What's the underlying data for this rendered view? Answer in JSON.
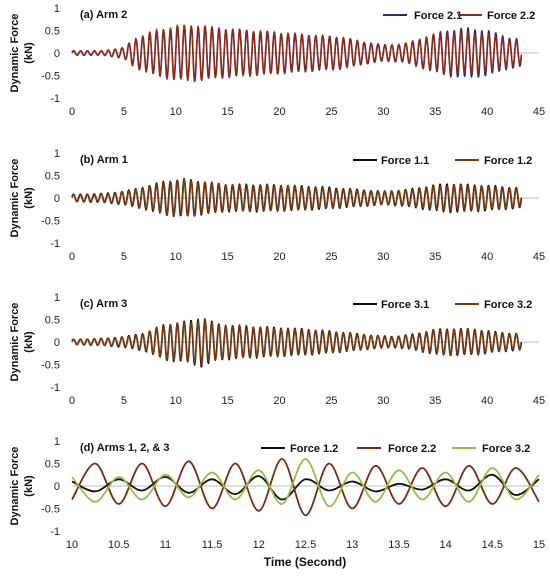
{
  "figure": {
    "x_axis_label": "Time  (Second)"
  },
  "chart_data": [
    {
      "type": "line",
      "title": "(a) Arm 2",
      "ylabel": "Dynamic Force (kN)",
      "xlabel": "",
      "xlim": [
        0,
        45
      ],
      "ylim": [
        -1,
        1
      ],
      "x_ticks": [
        "0",
        "5",
        "10",
        "15",
        "20",
        "25",
        "30",
        "35",
        "40",
        "45"
      ],
      "y_ticks": [
        "1",
        "0.5",
        "0",
        "-0.5",
        "-1"
      ],
      "legend_position": "top-right",
      "series": [
        {
          "name": "Force 2.1",
          "color": "#2e2a7a",
          "t_end": 43.3,
          "envelope": [
            [
              0,
              0.05
            ],
            [
              3,
              0.05
            ],
            [
              5,
              0.12
            ],
            [
              6,
              0.3
            ],
            [
              8,
              0.45
            ],
            [
              10,
              0.58
            ],
            [
              12,
              0.6
            ],
            [
              14,
              0.55
            ],
            [
              17,
              0.5
            ],
            [
              20,
              0.45
            ],
            [
              23,
              0.4
            ],
            [
              26,
              0.35
            ],
            [
              28,
              0.25
            ],
            [
              30,
              0.18
            ],
            [
              32,
              0.2
            ],
            [
              34,
              0.35
            ],
            [
              36,
              0.5
            ],
            [
              38,
              0.55
            ],
            [
              40,
              0.5
            ],
            [
              42,
              0.35
            ],
            [
              43.3,
              0.3
            ]
          ],
          "freq_hz": 1.5,
          "phase": 0.0
        },
        {
          "name": "Force 2.2",
          "color": "#8b2a17",
          "t_end": 43.3,
          "envelope": [
            [
              0,
              0.05
            ],
            [
              3,
              0.05
            ],
            [
              5,
              0.12
            ],
            [
              6,
              0.32
            ],
            [
              8,
              0.5
            ],
            [
              10,
              0.6
            ],
            [
              12,
              0.62
            ],
            [
              14,
              0.55
            ],
            [
              17,
              0.5
            ],
            [
              20,
              0.45
            ],
            [
              23,
              0.4
            ],
            [
              26,
              0.35
            ],
            [
              28,
              0.25
            ],
            [
              30,
              0.18
            ],
            [
              32,
              0.2
            ],
            [
              34,
              0.35
            ],
            [
              36,
              0.45
            ],
            [
              38,
              0.45
            ],
            [
              40,
              0.42
            ],
            [
              42,
              0.3
            ],
            [
              43.3,
              0.25
            ]
          ],
          "freq_hz": 1.5,
          "phase": 0.15
        }
      ]
    },
    {
      "type": "line",
      "title": "(b) Arm 1",
      "ylabel": "Dynamic Force (kN)",
      "xlabel": "",
      "xlim": [
        0,
        45
      ],
      "ylim": [
        -1,
        1
      ],
      "x_ticks": [
        "0",
        "5",
        "10",
        "15",
        "20",
        "25",
        "30",
        "35",
        "40",
        "45"
      ],
      "y_ticks": [
        "1",
        "0.5",
        "0",
        "-0.5",
        "-1"
      ],
      "legend_position": "top-right",
      "series": [
        {
          "name": "Force 1.1",
          "color": "#111111",
          "t_end": 43.3,
          "envelope": [
            [
              0,
              0.08
            ],
            [
              3,
              0.1
            ],
            [
              5,
              0.15
            ],
            [
              7,
              0.25
            ],
            [
              9,
              0.38
            ],
            [
              11,
              0.42
            ],
            [
              13,
              0.35
            ],
            [
              15,
              0.3
            ],
            [
              18,
              0.3
            ],
            [
              21,
              0.28
            ],
            [
              24,
              0.25
            ],
            [
              27,
              0.2
            ],
            [
              30,
              0.15
            ],
            [
              32,
              0.18
            ],
            [
              34,
              0.25
            ],
            [
              36,
              0.32
            ],
            [
              38,
              0.3
            ],
            [
              40,
              0.28
            ],
            [
              43.3,
              0.22
            ]
          ],
          "freq_hz": 1.5,
          "phase": 0.3
        },
        {
          "name": "Force 1.2",
          "color": "#7a3a10",
          "t_end": 43.3,
          "envelope": [
            [
              0,
              0.08
            ],
            [
              3,
              0.08
            ],
            [
              5,
              0.14
            ],
            [
              7,
              0.22
            ],
            [
              9,
              0.36
            ],
            [
              11,
              0.4
            ],
            [
              13,
              0.33
            ],
            [
              15,
              0.28
            ],
            [
              18,
              0.28
            ],
            [
              21,
              0.26
            ],
            [
              24,
              0.22
            ],
            [
              27,
              0.18
            ],
            [
              30,
              0.14
            ],
            [
              32,
              0.16
            ],
            [
              34,
              0.22
            ],
            [
              36,
              0.28
            ],
            [
              38,
              0.27
            ],
            [
              40,
              0.25
            ],
            [
              43.3,
              0.2
            ]
          ],
          "freq_hz": 1.5,
          "phase": 0.0
        }
      ]
    },
    {
      "type": "line",
      "title": "(c) Arm 3",
      "ylabel": "Dynamic Force (kN)",
      "xlabel": "",
      "xlim": [
        0,
        45
      ],
      "ylim": [
        -1,
        1
      ],
      "x_ticks": [
        "0",
        "5",
        "10",
        "15",
        "20",
        "25",
        "30",
        "35",
        "40",
        "45"
      ],
      "y_ticks": [
        "1",
        "0.5",
        "0",
        "-0.5",
        "-1"
      ],
      "legend_position": "top-right",
      "series": [
        {
          "name": "Force 3.1",
          "color": "#111111",
          "t_end": 43.3,
          "envelope": [
            [
              0,
              0.06
            ],
            [
              3,
              0.08
            ],
            [
              5,
              0.12
            ],
            [
              7,
              0.2
            ],
            [
              9,
              0.4
            ],
            [
              11,
              0.45
            ],
            [
              12.5,
              0.55
            ],
            [
              14,
              0.4
            ],
            [
              17,
              0.35
            ],
            [
              20,
              0.32
            ],
            [
              23,
              0.28
            ],
            [
              26,
              0.22
            ],
            [
              29,
              0.15
            ],
            [
              31,
              0.12
            ],
            [
              33,
              0.18
            ],
            [
              35,
              0.28
            ],
            [
              37,
              0.3
            ],
            [
              39,
              0.28
            ],
            [
              41,
              0.22
            ],
            [
              43.3,
              0.18
            ]
          ],
          "freq_hz": 1.5,
          "phase": 0.25
        },
        {
          "name": "Force 3.2",
          "color": "#7a3a10",
          "t_end": 43.3,
          "envelope": [
            [
              0,
              0.06
            ],
            [
              3,
              0.07
            ],
            [
              5,
              0.1
            ],
            [
              7,
              0.18
            ],
            [
              9,
              0.38
            ],
            [
              11,
              0.42
            ],
            [
              12.5,
              0.5
            ],
            [
              14,
              0.38
            ],
            [
              17,
              0.33
            ],
            [
              20,
              0.3
            ],
            [
              23,
              0.26
            ],
            [
              26,
              0.2
            ],
            [
              29,
              0.14
            ],
            [
              31,
              0.1
            ],
            [
              33,
              0.16
            ],
            [
              35,
              0.26
            ],
            [
              37,
              0.28
            ],
            [
              39,
              0.26
            ],
            [
              41,
              0.2
            ],
            [
              43.3,
              0.16
            ]
          ],
          "freq_hz": 1.5,
          "phase": 0.0
        }
      ]
    },
    {
      "type": "line",
      "title": "(d) Arms 1, 2, & 3",
      "ylabel": "Dynamic Force (kN)",
      "xlabel": "Time  (Second)",
      "xlim": [
        10,
        15
      ],
      "ylim": [
        -1,
        1
      ],
      "x_ticks": [
        "10",
        "10.5",
        "11",
        "11.5",
        "12",
        "12.5",
        "13",
        "13.5",
        "14",
        "14.5",
        "15"
      ],
      "y_ticks": [
        "1",
        "0.5",
        "0",
        "-0.5",
        "-1"
      ],
      "legend_position": "top-right",
      "series": [
        {
          "name": "Force 1.2",
          "color": "#111111",
          "x": [
            10,
            10.25,
            10.5,
            10.75,
            11,
            11.25,
            11.5,
            11.75,
            12,
            12.25,
            12.5,
            12.75,
            13,
            13.25,
            13.5,
            13.75,
            14,
            14.25,
            14.5,
            14.75,
            15
          ],
          "y": [
            0.1,
            -0.12,
            0.15,
            -0.1,
            0.2,
            -0.15,
            0.15,
            -0.18,
            0.22,
            -0.3,
            0.15,
            -0.1,
            0.1,
            -0.12,
            0.05,
            -0.08,
            0.15,
            -0.1,
            0.25,
            -0.2,
            0.15
          ]
        },
        {
          "name": "Force 2.2",
          "color": "#7a2a14",
          "x": [
            10,
            10.25,
            10.5,
            10.75,
            11,
            11.25,
            11.5,
            11.75,
            12,
            12.25,
            12.5,
            12.75,
            13,
            13.25,
            13.5,
            13.75,
            14,
            14.25,
            14.5,
            14.75,
            15
          ],
          "y": [
            -0.3,
            0.5,
            -0.4,
            0.5,
            -0.45,
            0.55,
            -0.5,
            0.5,
            -0.55,
            0.6,
            -0.65,
            0.5,
            -0.5,
            0.45,
            -0.4,
            0.4,
            -0.45,
            0.45,
            -0.4,
            0.4,
            -0.35
          ]
        },
        {
          "name": "Force 3.2",
          "color": "#8fbf4a",
          "x": [
            10,
            10.25,
            10.5,
            10.75,
            11,
            11.25,
            11.5,
            11.75,
            12,
            12.25,
            12.5,
            12.75,
            13,
            13.25,
            13.5,
            13.75,
            14,
            14.25,
            14.5,
            14.75,
            15
          ],
          "y": [
            0.2,
            -0.35,
            0.2,
            -0.3,
            0.25,
            -0.25,
            0.3,
            -0.3,
            0.35,
            -0.4,
            0.6,
            -0.45,
            0.3,
            -0.35,
            0.35,
            -0.3,
            0.3,
            -0.35,
            0.4,
            -0.3,
            0.25
          ]
        }
      ]
    }
  ]
}
